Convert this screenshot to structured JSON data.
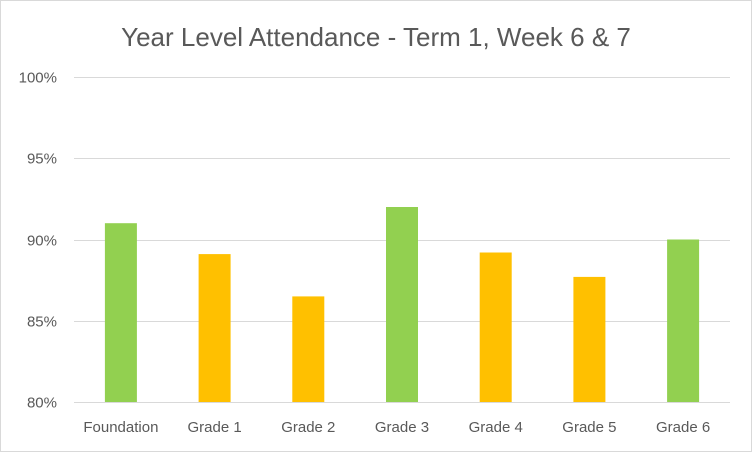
{
  "chart_data": {
    "type": "bar",
    "title": "Year Level Attendance - Term 1, Week 6 & 7",
    "xlabel": "",
    "ylabel": "",
    "categories": [
      "Foundation",
      "Grade 1",
      "Grade 2",
      "Grade 3",
      "Grade 4",
      "Grade 5",
      "Grade 6"
    ],
    "values": [
      91.0,
      89.1,
      86.5,
      92.0,
      89.2,
      87.7,
      90.0
    ],
    "bar_colors": [
      "#92d050",
      "#ffc000",
      "#ffc000",
      "#92d050",
      "#ffc000",
      "#ffc000",
      "#92d050"
    ],
    "ylim": [
      80,
      100
    ],
    "y_ticks": [
      80,
      85,
      90,
      95,
      100
    ],
    "y_tick_labels": [
      "80%",
      "85%",
      "90%",
      "95%",
      "100%"
    ],
    "grid": true,
    "legend": "none"
  }
}
